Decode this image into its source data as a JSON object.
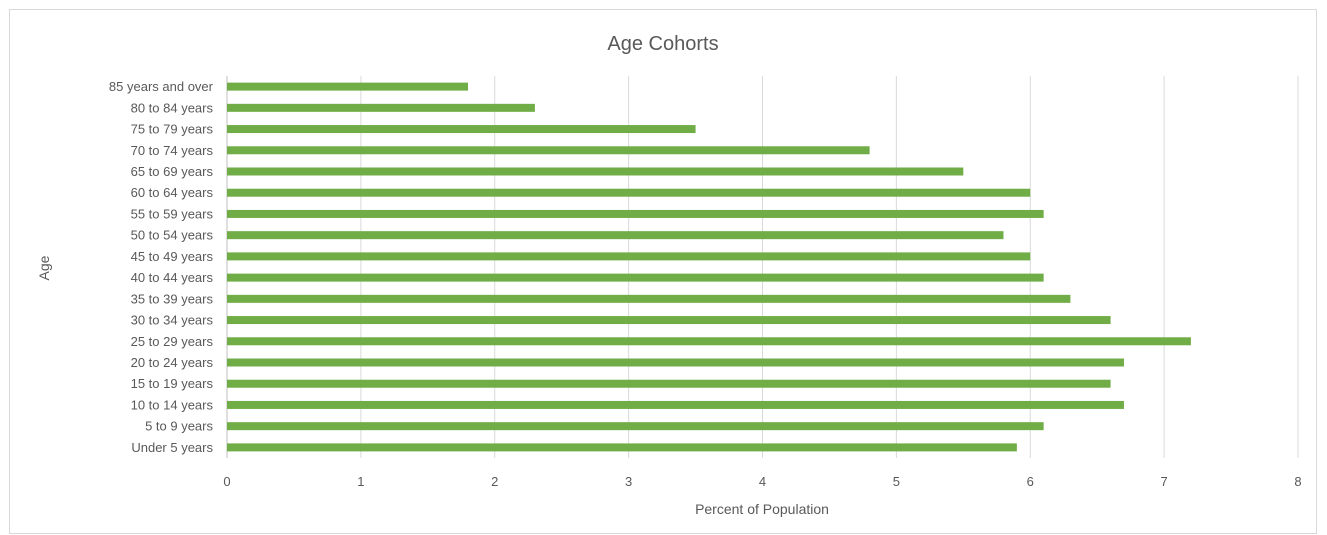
{
  "chart_data": {
    "type": "bar",
    "orientation": "horizontal",
    "title": "Age Cohorts",
    "xlabel": "Percent of Population",
    "ylabel": "Age",
    "xlim": [
      0,
      8
    ],
    "xticks": [
      0,
      1,
      2,
      3,
      4,
      5,
      6,
      7,
      8
    ],
    "grid": true,
    "legend": "none",
    "bar_color": "#70ad47",
    "categories": [
      "Under 5 years",
      "5 to 9 years",
      "10 to 14 years",
      "15 to 19 years",
      "20 to 24 years",
      "25 to 29 years",
      "30 to 34 years",
      "35 to 39 years",
      "40 to 44 years",
      "45 to 49 years",
      "50 to 54 years",
      "55 to 59 years",
      "60 to 64 years",
      "65 to 69 years",
      "70 to 74 years",
      "75 to 79 years",
      "80 to 84 years",
      "85 years and over"
    ],
    "values": [
      5.9,
      6.1,
      6.7,
      6.6,
      6.7,
      7.2,
      6.6,
      6.3,
      6.1,
      6.0,
      5.8,
      6.1,
      6.0,
      5.5,
      4.8,
      3.5,
      2.3,
      1.8
    ]
  }
}
